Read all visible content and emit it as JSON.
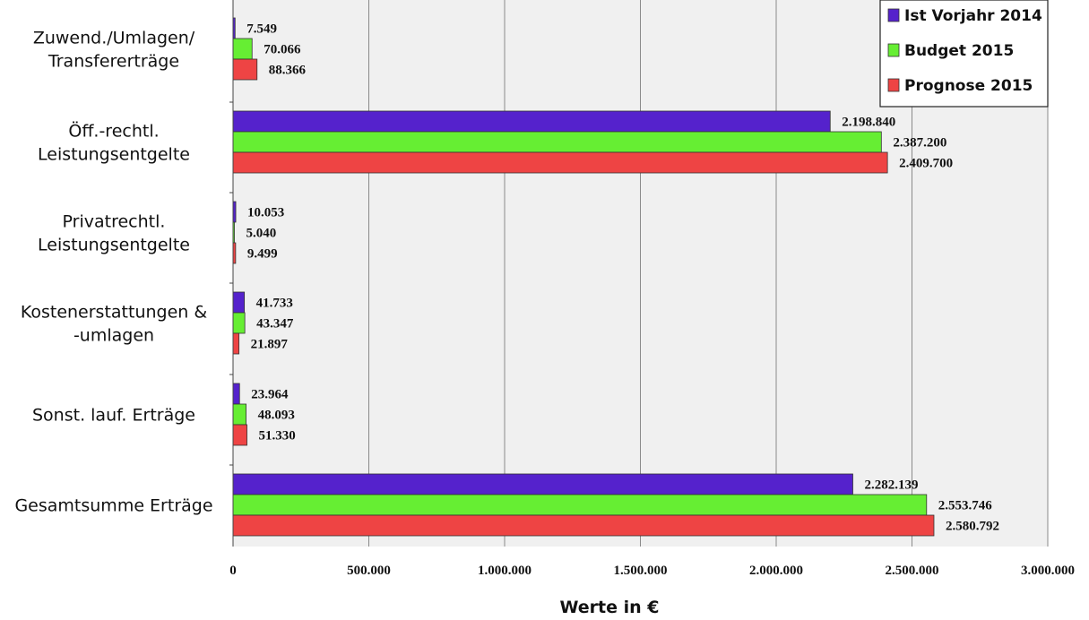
{
  "chart_data": {
    "type": "bar",
    "orientation": "horizontal",
    "categories": [
      [
        "Zuwend./Umlagen/",
        "Transfererträge"
      ],
      [
        "Öff.-rechtl.",
        "Leistungsentgelte"
      ],
      [
        "Privatrechtl.",
        "Leistungsentgelte"
      ],
      [
        "Kostenerstattungen &",
        "-umlagen"
      ],
      [
        "Sonst. lauf. Erträge"
      ],
      [
        "Gesamtsumme Erträge"
      ]
    ],
    "series": [
      {
        "name": "Ist Vorjahr 2014",
        "color": "#5522cc",
        "values": [
          7549,
          2198840,
          10053,
          41733,
          23964,
          2282139
        ],
        "labels": [
          "7.549",
          "2.198.840",
          "10.053",
          "41.733",
          "23.964",
          "2.282.139"
        ]
      },
      {
        "name": "Budget 2015",
        "color": "#66ee33",
        "values": [
          70066,
          2387200,
          5040,
          43347,
          48093,
          2553746
        ],
        "labels": [
          "70.066",
          "2.387.200",
          "5.040",
          "43.347",
          "48.093",
          "2.553.746"
        ]
      },
      {
        "name": "Prognose 2015",
        "color": "#ee4444",
        "values": [
          88366,
          2409700,
          9499,
          21897,
          51330,
          2580792
        ],
        "labels": [
          "88.366",
          "2.409.700",
          "9.499",
          "21.897",
          "51.330",
          "2.580.792"
        ]
      }
    ],
    "xticks": [
      0,
      500000,
      1000000,
      1500000,
      2000000,
      2500000,
      3000000
    ],
    "xtick_labels": [
      "0",
      "500.000",
      "1.000.000",
      "1.500.000",
      "2.000.000",
      "2.500.000",
      "3.000.000"
    ],
    "xlim": [
      0,
      3000000
    ],
    "xlabel": "Werte in €",
    "ylabel": "",
    "title": "",
    "grid": true,
    "legend_position": "top-right",
    "plot_background": "#f0f0f0"
  }
}
